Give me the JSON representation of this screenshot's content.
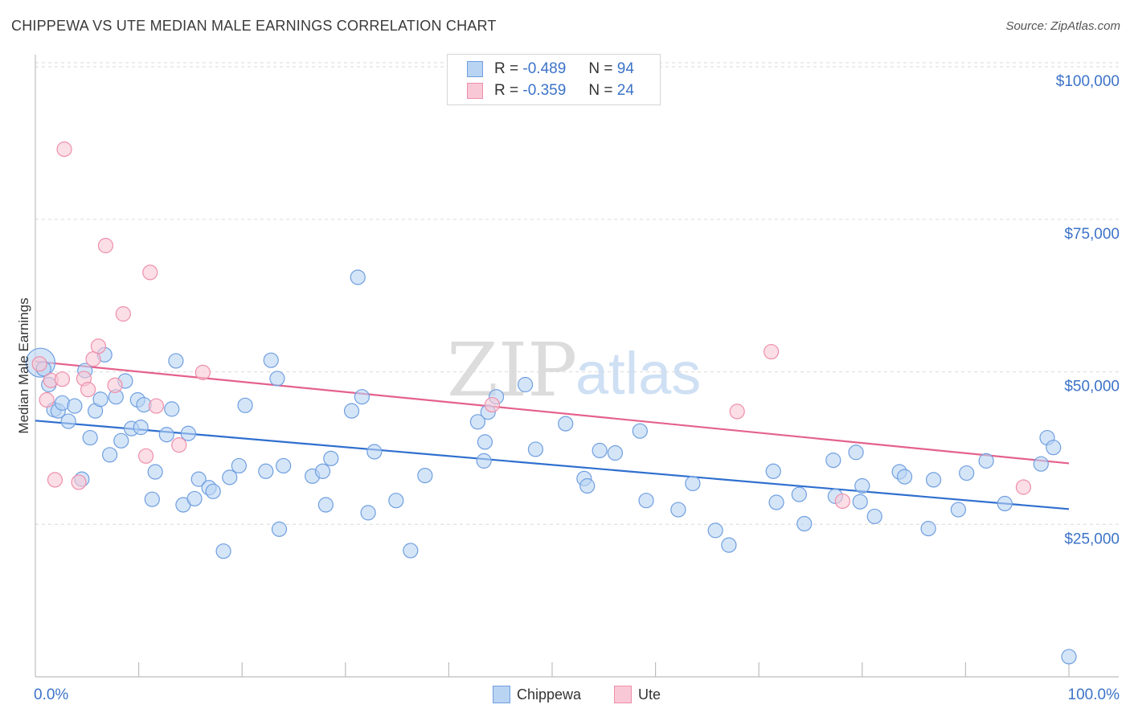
{
  "header": {
    "title": "CHIPPEWA VS UTE MEDIAN MALE EARNINGS CORRELATION CHART",
    "source": "Source: ZipAtlas.com"
  },
  "watermark": {
    "zip": "ZIP",
    "atlas": "atlas"
  },
  "stats_legend": {
    "chippewa": {
      "r_label": "R =",
      "r_value": "-0.489",
      "n_label": "N =",
      "n_value": "94"
    },
    "ute": {
      "r_label": "R =",
      "r_value": "-0.359",
      "n_label": "N =",
      "n_value": "24"
    }
  },
  "bottom_legend": {
    "chippewa": "Chippewa",
    "ute": "Ute"
  },
  "colors": {
    "chippewa_fill": "#b9d3f3",
    "chippewa_stroke": "#6f9fe0",
    "chippewa_line": "#2f6fcf",
    "ute_fill": "#f9c8d6",
    "ute_stroke": "#ee8fab",
    "ute_line": "#e4628c",
    "axis_label": "#3c73c8",
    "grid": "#d9d9d9"
  },
  "chart_data": {
    "type": "scatter",
    "title": "CHIPPEWA VS UTE MEDIAN MALE EARNINGS CORRELATION CHART",
    "xlabel": "",
    "ylabel": "Median Male Earnings",
    "x_tick_labels": [
      "0.0%",
      "100.0%"
    ],
    "y_tick_labels": [
      "$25,000",
      "$50,000",
      "$75,000",
      "$100,000"
    ],
    "y_ticks": [
      25000,
      50000,
      75000,
      100000
    ],
    "xlim": [
      0,
      100
    ],
    "ylim": [
      0,
      102000
    ],
    "grid": true,
    "legend_position": "bottom",
    "series": [
      {
        "name": "Chippewa",
        "r": -0.489,
        "n": 94,
        "trend": {
          "x": [
            0,
            100
          ],
          "y": [
            42000,
            27500
          ]
        },
        "points": [
          [
            0.5,
            51500
          ],
          [
            0.8,
            50500
          ],
          [
            1.3,
            47900
          ],
          [
            1.8,
            43800
          ],
          [
            2.2,
            43600
          ],
          [
            2.6,
            44900
          ],
          [
            3.2,
            41900
          ],
          [
            3.8,
            44400
          ],
          [
            4.5,
            32400
          ],
          [
            4.8,
            50200
          ],
          [
            5.3,
            39200
          ],
          [
            5.8,
            43600
          ],
          [
            6.3,
            45500
          ],
          [
            6.7,
            52800
          ],
          [
            7.2,
            36400
          ],
          [
            7.8,
            45900
          ],
          [
            8.3,
            38700
          ],
          [
            8.7,
            48500
          ],
          [
            9.3,
            40700
          ],
          [
            9.9,
            45400
          ],
          [
            10.2,
            40900
          ],
          [
            10.5,
            44600
          ],
          [
            11.3,
            29100
          ],
          [
            11.6,
            33600
          ],
          [
            12.7,
            39700
          ],
          [
            13.2,
            43900
          ],
          [
            13.6,
            51800
          ],
          [
            14.3,
            28200
          ],
          [
            14.8,
            39900
          ],
          [
            15.4,
            29200
          ],
          [
            15.8,
            32400
          ],
          [
            16.8,
            31000
          ],
          [
            17.2,
            30400
          ],
          [
            18.2,
            20600
          ],
          [
            18.8,
            32700
          ],
          [
            19.7,
            34600
          ],
          [
            20.3,
            44500
          ],
          [
            22.3,
            33700
          ],
          [
            22.8,
            51900
          ],
          [
            23.4,
            48900
          ],
          [
            23.6,
            24200
          ],
          [
            24.0,
            34600
          ],
          [
            26.8,
            32900
          ],
          [
            27.8,
            33700
          ],
          [
            28.1,
            28200
          ],
          [
            28.6,
            35800
          ],
          [
            30.6,
            43600
          ],
          [
            31.2,
            65500
          ],
          [
            31.6,
            45900
          ],
          [
            32.2,
            26900
          ],
          [
            32.8,
            36900
          ],
          [
            34.9,
            28900
          ],
          [
            36.3,
            20700
          ],
          [
            37.7,
            33000
          ],
          [
            42.8,
            41800
          ],
          [
            43.4,
            35400
          ],
          [
            43.5,
            38500
          ],
          [
            43.8,
            43400
          ],
          [
            44.6,
            45900
          ],
          [
            47.4,
            47900
          ],
          [
            48.4,
            37300
          ],
          [
            51.3,
            41500
          ],
          [
            53.1,
            32500
          ],
          [
            53.4,
            31300
          ],
          [
            54.6,
            37100
          ],
          [
            56.1,
            36700
          ],
          [
            58.5,
            40300
          ],
          [
            59.1,
            28900
          ],
          [
            62.2,
            27400
          ],
          [
            63.6,
            31700
          ],
          [
            65.8,
            24000
          ],
          [
            67.1,
            21600
          ],
          [
            71.4,
            33700
          ],
          [
            71.7,
            28600
          ],
          [
            73.9,
            29900
          ],
          [
            74.4,
            25100
          ],
          [
            77.2,
            35500
          ],
          [
            77.4,
            29600
          ],
          [
            79.4,
            36800
          ],
          [
            79.8,
            28700
          ],
          [
            80.0,
            31300
          ],
          [
            81.2,
            26300
          ],
          [
            83.6,
            33600
          ],
          [
            84.1,
            32800
          ],
          [
            86.4,
            24300
          ],
          [
            86.9,
            32300
          ],
          [
            89.3,
            27400
          ],
          [
            90.1,
            33400
          ],
          [
            92.0,
            35400
          ],
          [
            93.8,
            28400
          ],
          [
            97.3,
            34900
          ],
          [
            97.9,
            39200
          ],
          [
            98.5,
            37600
          ],
          [
            100.0,
            3300
          ]
        ]
      },
      {
        "name": "Ute",
        "r": -0.359,
        "n": 24,
        "trend": {
          "x": [
            0,
            100
          ],
          "y": [
            51700,
            35000
          ]
        },
        "points": [
          [
            0.4,
            51300
          ],
          [
            1.1,
            45400
          ],
          [
            1.5,
            48600
          ],
          [
            1.9,
            32300
          ],
          [
            2.6,
            48800
          ],
          [
            2.8,
            86500
          ],
          [
            4.2,
            31900
          ],
          [
            4.7,
            48900
          ],
          [
            5.1,
            47100
          ],
          [
            5.6,
            52100
          ],
          [
            6.1,
            54200
          ],
          [
            6.8,
            70700
          ],
          [
            7.7,
            47800
          ],
          [
            8.5,
            59500
          ],
          [
            10.7,
            36200
          ],
          [
            11.1,
            66300
          ],
          [
            11.7,
            44400
          ],
          [
            13.9,
            38000
          ],
          [
            16.2,
            49900
          ],
          [
            44.2,
            44600
          ],
          [
            67.9,
            43500
          ],
          [
            71.2,
            53300
          ],
          [
            78.1,
            28800
          ],
          [
            95.6,
            31100
          ]
        ]
      }
    ]
  }
}
